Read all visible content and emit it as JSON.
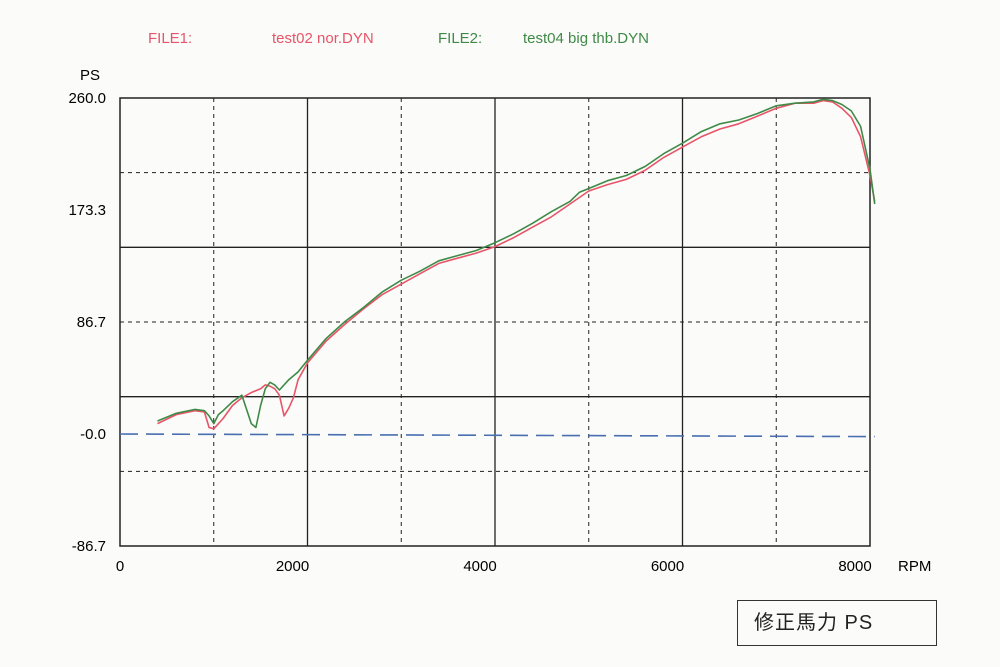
{
  "legend": {
    "file1_label": "FILE1:",
    "file1_name": "test02 nor.DYN",
    "file2_label": "FILE2:",
    "file2_name": "test04 big thb.DYN"
  },
  "unit_box": "修正馬力  PS",
  "colors": {
    "series1": "#e8556a",
    "series2": "#3f8a47",
    "baseline": "#4a6fb0",
    "grid": "#222222"
  },
  "chart_data": {
    "type": "line",
    "xlabel": "RPM",
    "ylabel": "PS",
    "xlim": [
      0,
      8000
    ],
    "ylim": [
      -86.7,
      260.0
    ],
    "x_ticks": [
      "0",
      "2000",
      "4000",
      "6000",
      "8000"
    ],
    "y_ticks": [
      "-86.7",
      "-0.0",
      "86.7",
      "173.3",
      "260.0"
    ],
    "grid": true,
    "series": [
      {
        "name": "test02 nor.DYN",
        "x": [
          400,
          600,
          800,
          900,
          950,
          1000,
          1100,
          1200,
          1300,
          1400,
          1500,
          1550,
          1600,
          1650,
          1700,
          1750,
          1800,
          1850,
          1900,
          2000,
          2200,
          2400,
          2600,
          2800,
          3000,
          3200,
          3400,
          3600,
          3800,
          4000,
          4200,
          4400,
          4600,
          4800,
          5000,
          5200,
          5400,
          5600,
          5800,
          6000,
          6200,
          6400,
          6600,
          6800,
          7000,
          7200,
          7400,
          7500,
          7600,
          7700,
          7800,
          7900,
          8000,
          8050
        ],
        "y": [
          8,
          15,
          18,
          17,
          5,
          4,
          12,
          22,
          28,
          32,
          35,
          38,
          37,
          35,
          30,
          14,
          20,
          28,
          42,
          55,
          72,
          85,
          97,
          108,
          116,
          124,
          132,
          136,
          140,
          145,
          152,
          160,
          168,
          178,
          188,
          193,
          197,
          204,
          214,
          222,
          230,
          236,
          240,
          246,
          252,
          256,
          256,
          258,
          257,
          252,
          245,
          230,
          200,
          180
        ]
      },
      {
        "name": "test04 big thb.DYN",
        "x": [
          400,
          600,
          800,
          900,
          950,
          1000,
          1050,
          1100,
          1200,
          1300,
          1400,
          1450,
          1500,
          1550,
          1600,
          1650,
          1700,
          1800,
          1900,
          2000,
          2200,
          2400,
          2600,
          2800,
          3000,
          3200,
          3400,
          3600,
          3800,
          4000,
          4200,
          4400,
          4600,
          4800,
          4900,
          5000,
          5200,
          5400,
          5600,
          5800,
          6000,
          6200,
          6400,
          6600,
          6800,
          7000,
          7200,
          7400,
          7500,
          7600,
          7700,
          7800,
          7900,
          8000,
          8050
        ],
        "y": [
          10,
          16,
          19,
          18,
          14,
          8,
          15,
          18,
          25,
          30,
          8,
          5,
          22,
          35,
          40,
          38,
          34,
          42,
          48,
          57,
          74,
          87,
          98,
          110,
          119,
          126,
          134,
          138,
          142,
          148,
          155,
          163,
          172,
          180,
          187,
          190,
          196,
          200,
          207,
          217,
          225,
          234,
          240,
          243,
          248,
          254,
          256,
          257,
          259,
          258,
          255,
          250,
          238,
          205,
          178
        ]
      },
      {
        "name": "",
        "x": [
          0,
          8050
        ],
        "y": [
          0,
          -2
        ]
      }
    ]
  }
}
